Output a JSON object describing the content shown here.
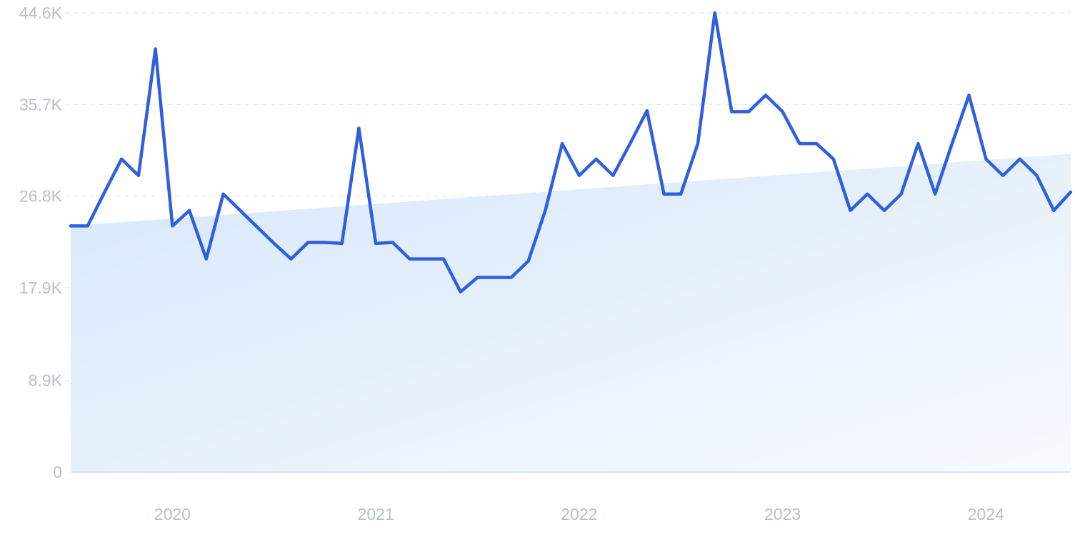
{
  "chart_data": {
    "type": "line",
    "title": "",
    "xlabel": "",
    "ylabel": "",
    "x_tick_labels": [
      "2020",
      "2021",
      "2022",
      "2023",
      "2024"
    ],
    "y_tick_labels": [
      "0",
      "8.9K",
      "17.9K",
      "26.8K",
      "35.7K",
      "44.6K"
    ],
    "y_tick_values": [
      0,
      8900,
      17900,
      26800,
      35700,
      44600
    ],
    "ylim": [
      0,
      44600
    ],
    "xlim": [
      "2019-07",
      "2024-06"
    ],
    "grid": true,
    "legend": "none",
    "line_color": "#2f5ee0",
    "fill_color": "#dbe9fa",
    "trend": {
      "start": 23900,
      "end": 30900
    },
    "x": [
      "2019-07",
      "2019-08",
      "2019-09",
      "2019-10",
      "2019-11",
      "2019-12",
      "2020-01",
      "2020-02",
      "2020-03",
      "2020-04",
      "2020-05",
      "2020-06",
      "2020-07",
      "2020-08",
      "2020-09",
      "2020-10",
      "2020-11",
      "2020-12",
      "2021-01",
      "2021-02",
      "2021-03",
      "2021-04",
      "2021-05",
      "2021-06",
      "2021-07",
      "2021-08",
      "2021-09",
      "2021-10",
      "2021-11",
      "2021-12",
      "2022-01",
      "2022-02",
      "2022-03",
      "2022-04",
      "2022-05",
      "2022-06",
      "2022-07",
      "2022-08",
      "2022-09",
      "2022-10",
      "2022-11",
      "2022-12",
      "2023-01",
      "2023-02",
      "2023-03",
      "2023-04",
      "2023-05",
      "2023-06",
      "2023-07",
      "2023-08",
      "2023-09",
      "2023-10",
      "2023-11",
      "2023-12",
      "2024-01",
      "2024-02",
      "2024-03",
      "2024-04",
      "2024-05",
      "2024-06"
    ],
    "series": [
      {
        "values": [
          23900,
          23900,
          27200,
          30400,
          28800,
          41100,
          23900,
          25400,
          20700,
          27000,
          25400,
          23800,
          22200,
          20700,
          22300,
          22300,
          22200,
          33400,
          22200,
          22300,
          20700,
          20700,
          20700,
          17500,
          18900,
          18900,
          18900,
          20500,
          25400,
          31900,
          28800,
          30400,
          28800,
          31900,
          35100,
          27000,
          27000,
          31900,
          44600,
          35000,
          35000,
          36600,
          35000,
          31900,
          31900,
          30400,
          25400,
          27000,
          25400,
          27000,
          31900,
          27000,
          31900,
          36600,
          30400,
          28800,
          30400,
          28800,
          25400,
          27200
        ]
      }
    ]
  }
}
